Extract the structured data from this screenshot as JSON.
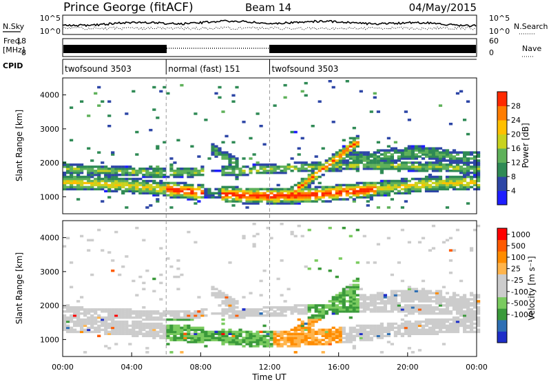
{
  "header": {
    "station": "Prince George (fitACF)",
    "beam": "Beam 14",
    "date": "04/May/2015"
  },
  "noise_panel": {
    "left_label": "N.Sky",
    "right_label": "N.Search",
    "left_ticks": [
      "10^5",
      "10^0"
    ],
    "right_ticks": [
      "10^5",
      "10^0"
    ]
  },
  "freq_panel": {
    "left_label_1": "Freq.",
    "left_label_2": "[MHz]",
    "right_label": "Nave",
    "left_ticks": [
      "18",
      "8"
    ],
    "right_ticks": [
      "60",
      "0"
    ]
  },
  "cpid_panel": {
    "label": "CPID",
    "modes": [
      {
        "name": "twofsound 3503",
        "start_hour": 0,
        "end_hour": 6
      },
      {
        "name": "normal (fast) 151",
        "start_hour": 6,
        "end_hour": 12
      },
      {
        "name": "twofsound 3503",
        "start_hour": 12,
        "end_hour": 24
      }
    ]
  },
  "x_axis": {
    "label": "Time UT",
    "ticks": [
      "00:00",
      "04:00",
      "08:00",
      "12:00",
      "16:00",
      "20:00",
      "00:00"
    ],
    "range_hours": [
      0,
      24
    ]
  },
  "colors": {
    "power": [
      "#1e1eff",
      "#2d46a6",
      "#2f8a55",
      "#5fb15a",
      "#c8d21e",
      "#ffc000",
      "#ff7d00",
      "#ff2a00"
    ],
    "velocity": [
      "#ff0000",
      "#ff5a00",
      "#ff8c00",
      "#ffb44b",
      "#cccccc",
      "#cccccc",
      "#7acb5f",
      "#3a9a3a",
      "#2e6fb4",
      "#1e2ec8"
    ]
  },
  "chart_data": [
    {
      "type": "heatmap",
      "panel": "power",
      "ylabel": "Slant Range [km]",
      "yticks": [
        "1000",
        "2000",
        "3000",
        "4000"
      ],
      "ylim": [
        500,
        4500
      ],
      "xlim": [
        0,
        24
      ],
      "colorbar_label": "Power [dB]",
      "colorbar_ticks": [
        "4",
        "8",
        "12",
        "16",
        "20",
        "24",
        "28"
      ],
      "colorbar_range": [
        0,
        32
      ]
    },
    {
      "type": "heatmap",
      "panel": "velocity",
      "ylabel": "Slant Range [km]",
      "yticks": [
        "1000",
        "2000",
        "3000",
        "4000"
      ],
      "ylim": [
        500,
        4500
      ],
      "xlim": [
        0,
        24
      ],
      "colorbar_label": "Velocity [m s⁻¹]",
      "colorbar_ticks": [
        "1000",
        "500",
        "100",
        "25",
        "-25",
        "-100",
        "-500",
        "-1000"
      ]
    }
  ]
}
